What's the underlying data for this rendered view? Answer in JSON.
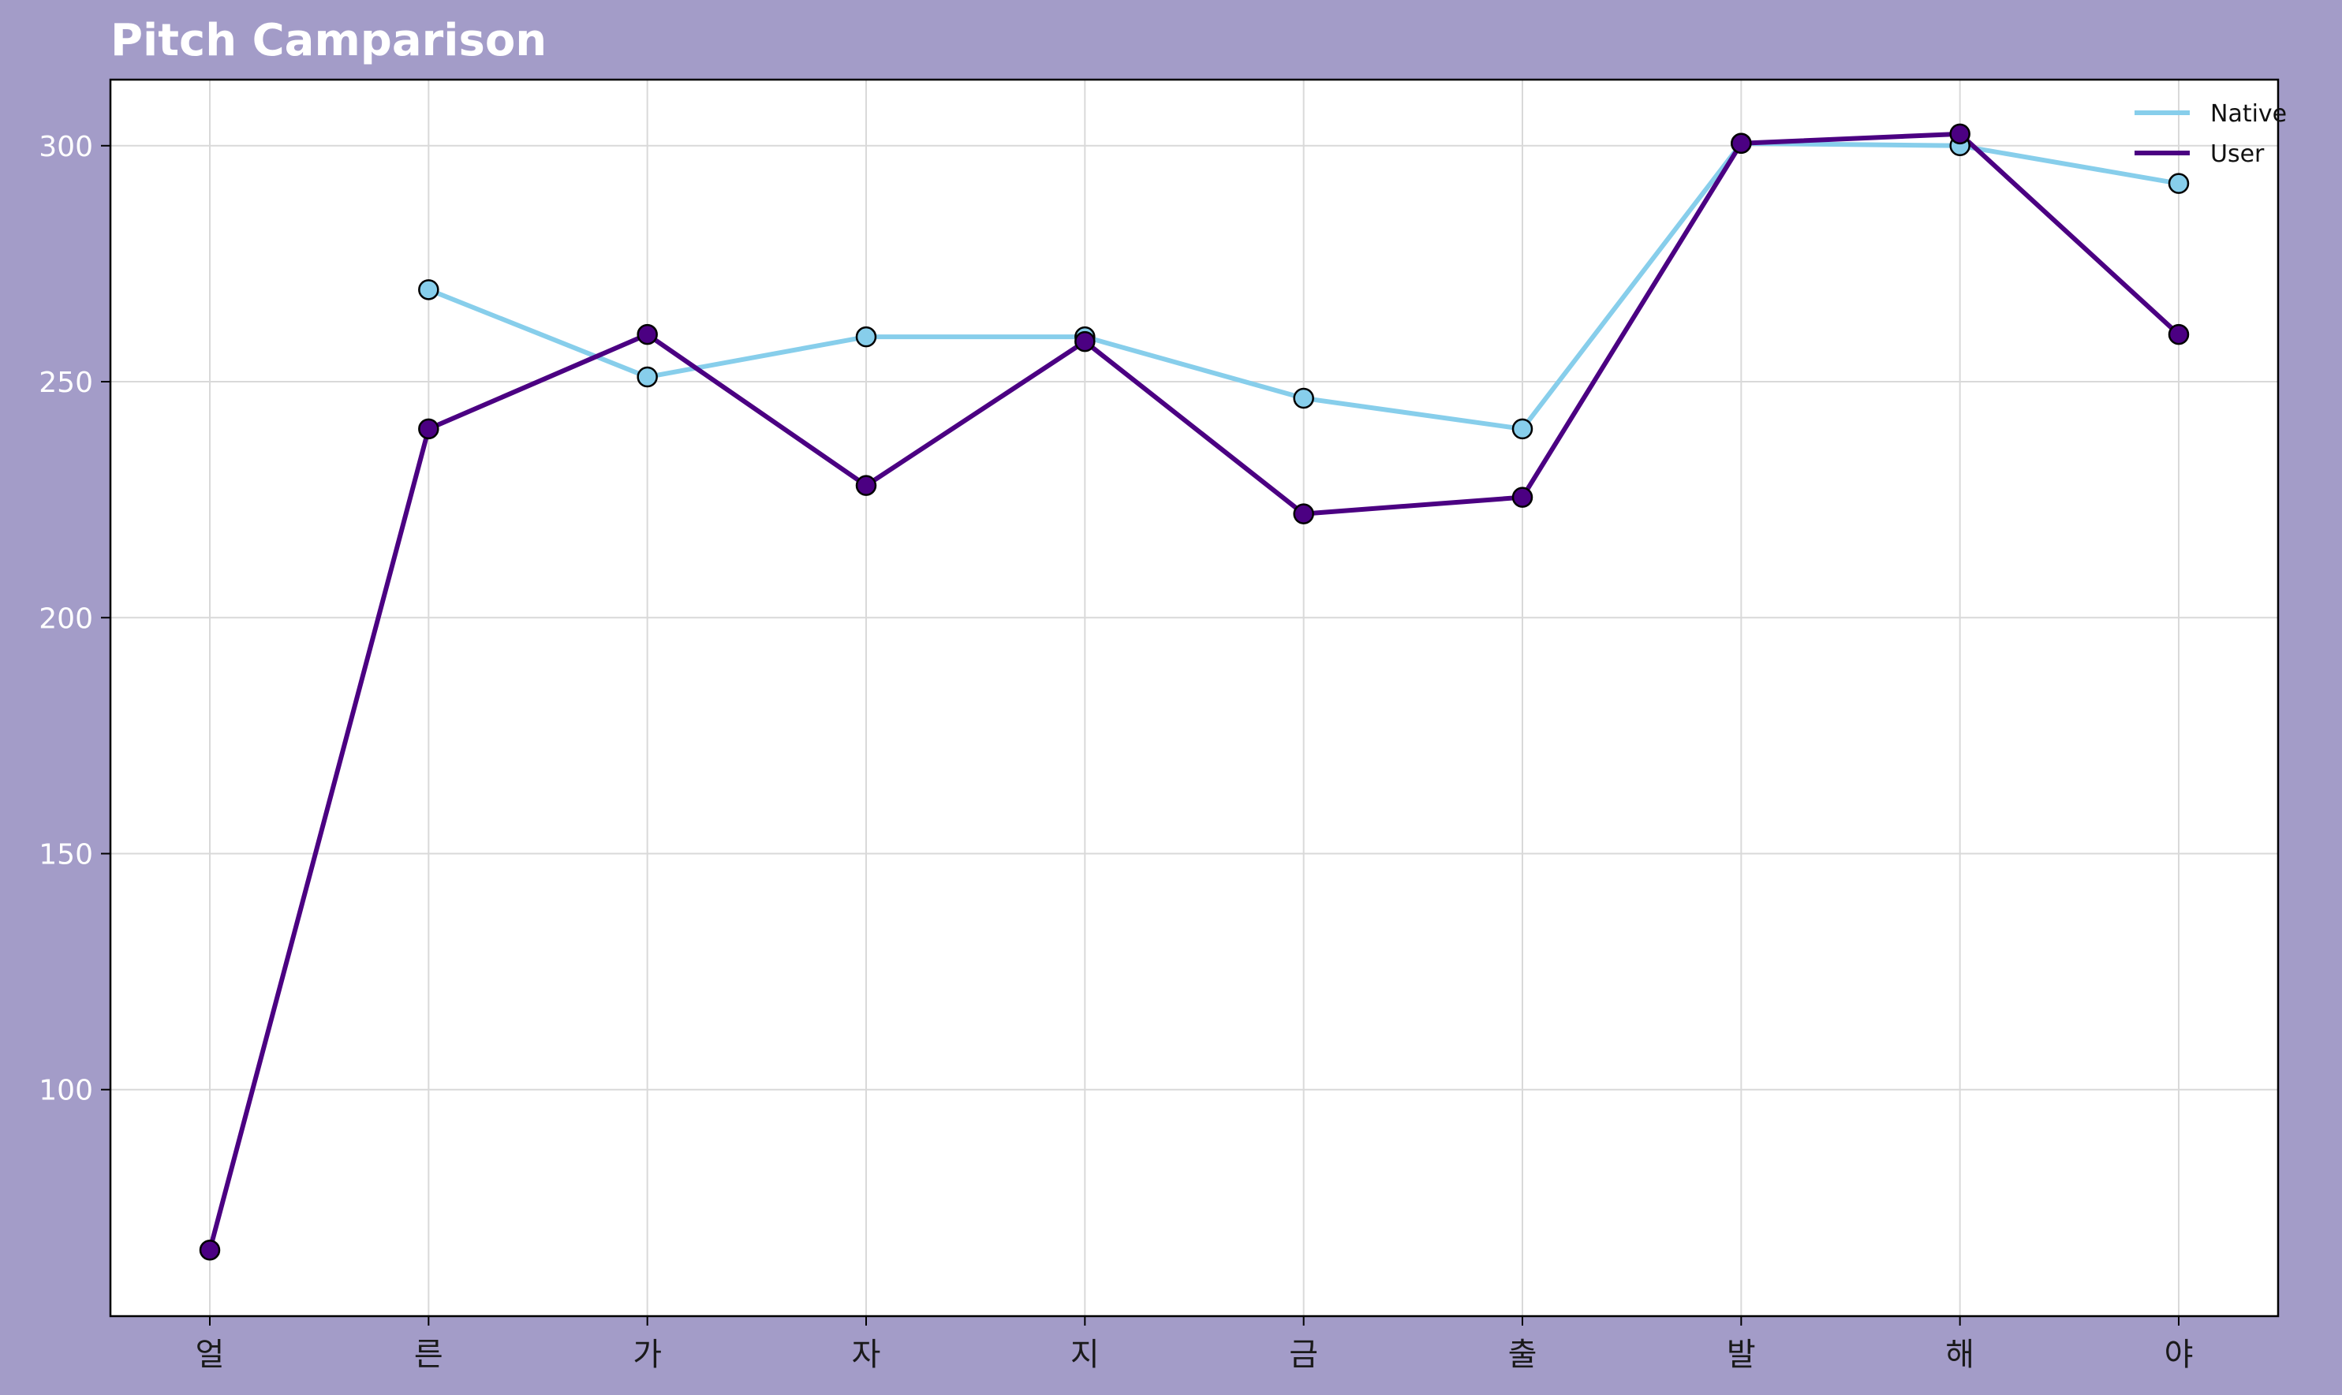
{
  "chart_data": {
    "type": "line",
    "title": "Pitch Camparison",
    "xlabel": "",
    "ylabel": "",
    "categories": [
      "얼",
      "른",
      "가",
      "자",
      "지",
      "금",
      "출",
      "발",
      "해",
      "야"
    ],
    "ylim": [
      52,
      314
    ],
    "yticks": [
      100,
      150,
      200,
      250,
      300
    ],
    "grid": true,
    "legend_position": "top-right",
    "series": [
      {
        "name": "Native",
        "color": "#87ceeb",
        "values": [
          null,
          269.5,
          251.0,
          259.5,
          259.5,
          246.5,
          240.0,
          300.5,
          300.0,
          292.0
        ]
      },
      {
        "name": "User",
        "color": "#4b0082",
        "values": [
          66.0,
          240.0,
          260.0,
          228.0,
          258.5,
          222.0,
          225.5,
          300.5,
          302.5,
          260.0
        ]
      }
    ]
  }
}
